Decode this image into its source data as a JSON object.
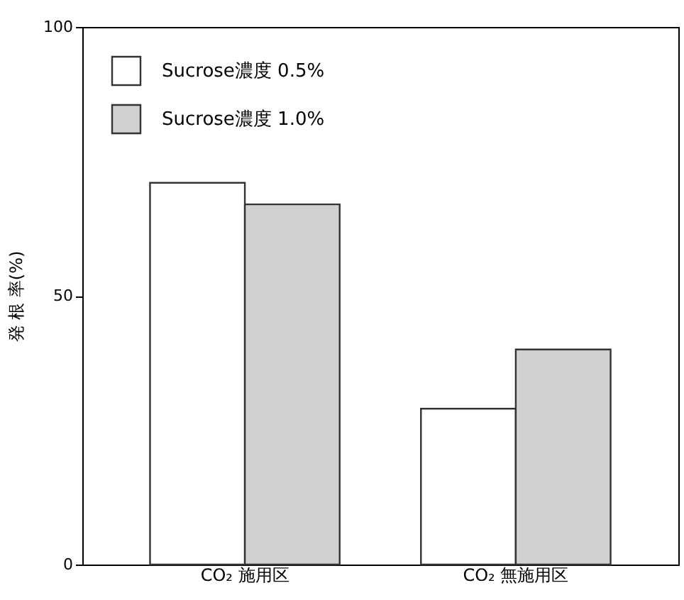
{
  "chart_data": {
    "type": "bar",
    "ylabel": "発 根 率(%)",
    "categories": [
      "CO₂ 施用区",
      "CO₂ 無施用区"
    ],
    "series": [
      {
        "name": "Sucrose濃度 0.5%",
        "color": "#ffffff",
        "values": [
          71,
          29
        ]
      },
      {
        "name": "Sucrose濃度 1.0%",
        "color": "#d0d0d0",
        "values": [
          67,
          40
        ]
      }
    ],
    "ylim": [
      0,
      100
    ],
    "yticks": [
      0,
      50,
      100
    ],
    "grid": false,
    "legend": "top left"
  }
}
